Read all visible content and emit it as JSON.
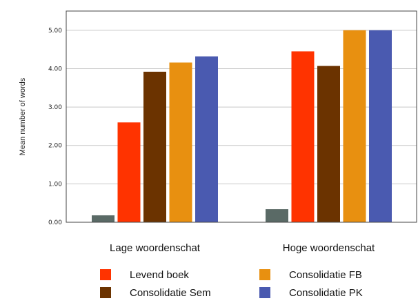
{
  "chart_data": {
    "type": "bar",
    "title": "",
    "xlabel": "",
    "ylabel": "Mean number of words",
    "ylim": [
      0,
      5.5
    ],
    "yticks": [
      "0.00",
      "1.00",
      "2.00",
      "3.00",
      "4.00",
      "5.00"
    ],
    "ytick_values": [
      0,
      1,
      2,
      3,
      4,
      5
    ],
    "grid": true,
    "legend_position": "bottom",
    "categories": [
      "Lage woordenschat",
      "Hoge woordenschat"
    ],
    "series": [
      {
        "name": "",
        "color": "#5a6a66",
        "values": [
          0.18,
          0.34
        ]
      },
      {
        "name": "Levend boek",
        "color": "#ff3300",
        "values": [
          2.6,
          4.45
        ]
      },
      {
        "name": "Consolidatie Sem",
        "color": "#6b3300",
        "values": [
          3.92,
          4.07
        ]
      },
      {
        "name": "Consolidatie FB",
        "color": "#e89010",
        "values": [
          4.16,
          5.0
        ]
      },
      {
        "name": "Consolidatie PK",
        "color": "#4a5ab0",
        "values": [
          4.32,
          5.0
        ]
      }
    ]
  }
}
